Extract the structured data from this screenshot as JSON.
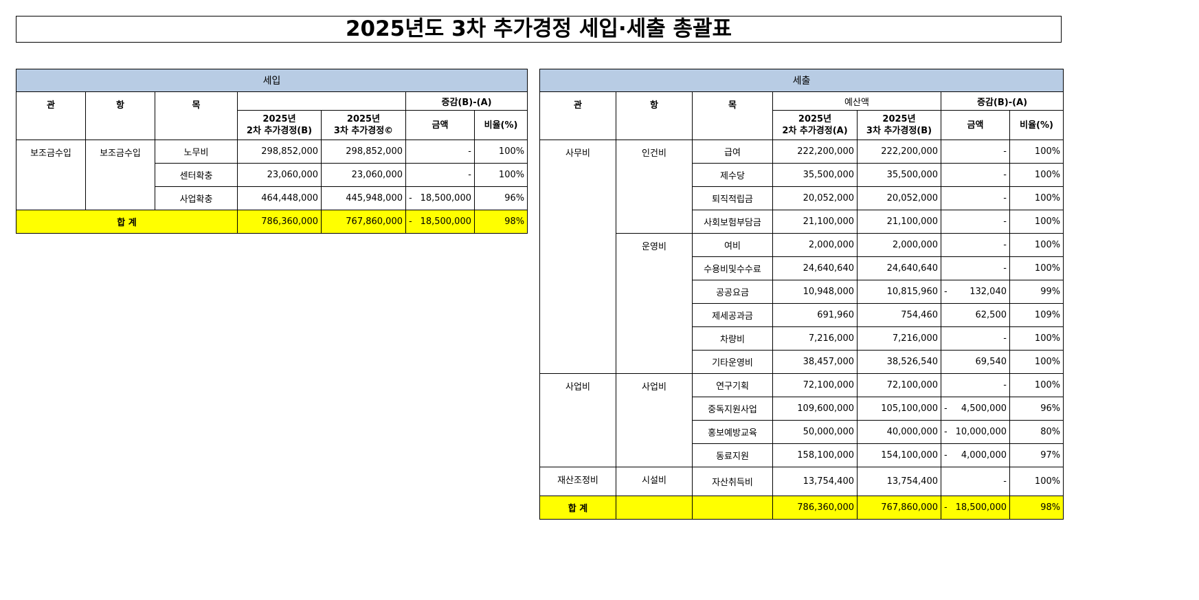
{
  "title": "2025년도 3차 추가경정 세입·세출 총괄표",
  "revenue": {
    "header": "세입",
    "col_gwan": "관",
    "col_hang": "항",
    "col_mok": "목",
    "col_budget_group": "",
    "col_b_year": "2025년",
    "col_b_label": "2차 추가경정(B)",
    "col_c_year": "2025년",
    "col_c_label": "3차 추가경정©",
    "col_diff_group": "증감(B)-(A)",
    "col_amount": "금액",
    "col_ratio": "비율(%)",
    "groups": [
      {
        "gwan": "보조금수입",
        "hangs": [
          {
            "hang": "보조금수입",
            "rows": [
              {
                "mok": "노무비",
                "prev": "298,852,000",
                "curr": "298,852,000",
                "diff_sign": "",
                "diff": "-",
                "ratio": "100%"
              },
              {
                "mok": "센터확충",
                "prev": "23,060,000",
                "curr": "23,060,000",
                "diff_sign": "",
                "diff": "-",
                "ratio": "100%"
              },
              {
                "mok": "사업확충",
                "prev": "464,448,000",
                "curr": "445,948,000",
                "diff_sign": "-",
                "diff": "18,500,000",
                "ratio": "96%"
              }
            ]
          }
        ]
      }
    ],
    "total": {
      "label": "합  계",
      "prev": "786,360,000",
      "curr": "767,860,000",
      "diff_sign": "-",
      "diff": "18,500,000",
      "ratio": "98%"
    }
  },
  "expenditure": {
    "header": "세출",
    "col_gwan": "관",
    "col_hang": "항",
    "col_mok": "목",
    "col_budget_group": "예산액",
    "col_b_year": "2025년",
    "col_b_label": "2차 추가경정(A)",
    "col_c_year": "2025년",
    "col_c_label": "3차 추가경정(B)",
    "col_diff_group": "증감(B)-(A)",
    "col_amount": "금액",
    "col_ratio": "비율(%)",
    "groups": [
      {
        "gwan": "사무비",
        "hangs": [
          {
            "hang": "인건비",
            "rows": [
              {
                "mok": "급여",
                "prev": "222,200,000",
                "curr": "222,200,000",
                "diff_sign": "",
                "diff": "-",
                "ratio": "100%"
              },
              {
                "mok": "제수당",
                "prev": "35,500,000",
                "curr": "35,500,000",
                "diff_sign": "",
                "diff": "-",
                "ratio": "100%"
              },
              {
                "mok": "퇴직적립금",
                "prev": "20,052,000",
                "curr": "20,052,000",
                "diff_sign": "",
                "diff": "-",
                "ratio": "100%"
              },
              {
                "mok": "사회보험부담금",
                "prev": "21,100,000",
                "curr": "21,100,000",
                "diff_sign": "",
                "diff": "-",
                "ratio": "100%"
              }
            ]
          },
          {
            "hang": "운영비",
            "rows": [
              {
                "mok": "여비",
                "prev": "2,000,000",
                "curr": "2,000,000",
                "diff_sign": "",
                "diff": "-",
                "ratio": "100%"
              },
              {
                "mok": "수용비및수수료",
                "prev": "24,640,640",
                "curr": "24,640,640",
                "diff_sign": "",
                "diff": "-",
                "ratio": "100%"
              },
              {
                "mok": "공공요금",
                "prev": "10,948,000",
                "curr": "10,815,960",
                "diff_sign": "-",
                "diff": "132,040",
                "ratio": "99%"
              },
              {
                "mok": "제세공과금",
                "prev": "691,960",
                "curr": "754,460",
                "diff_sign": "",
                "diff": "62,500",
                "ratio": "109%"
              },
              {
                "mok": "차량비",
                "prev": "7,216,000",
                "curr": "7,216,000",
                "diff_sign": "",
                "diff": "-",
                "ratio": "100%"
              },
              {
                "mok": "기타운영비",
                "prev": "38,457,000",
                "curr": "38,526,540",
                "diff_sign": "",
                "diff": "69,540",
                "ratio": "100%"
              }
            ]
          }
        ]
      },
      {
        "gwan": "사업비",
        "hangs": [
          {
            "hang": "사업비",
            "rows": [
              {
                "mok": "연구기획",
                "prev": "72,100,000",
                "curr": "72,100,000",
                "diff_sign": "",
                "diff": "-",
                "ratio": "100%"
              },
              {
                "mok": "중독지원사업",
                "prev": "109,600,000",
                "curr": "105,100,000",
                "diff_sign": "-",
                "diff": "4,500,000",
                "ratio": "96%"
              },
              {
                "mok": "홍보예방교육",
                "prev": "50,000,000",
                "curr": "40,000,000",
                "diff_sign": "-",
                "diff": "10,000,000",
                "ratio": "80%"
              },
              {
                "mok": "동료지원",
                "prev": "158,100,000",
                "curr": "154,100,000",
                "diff_sign": "-",
                "diff": "4,000,000",
                "ratio": "97%"
              }
            ]
          }
        ]
      },
      {
        "gwan": "재산조정비",
        "hangs": [
          {
            "hang": "시설비",
            "rows": [
              {
                "mok": "자산취득비",
                "prev": "13,754,400",
                "curr": "13,754,400",
                "diff_sign": "",
                "diff": "-",
                "ratio": "100%"
              }
            ]
          }
        ]
      }
    ],
    "total": {
      "label": "합  계",
      "prev": "786,360,000",
      "curr": "767,860,000",
      "diff_sign": "-",
      "diff": "18,500,000",
      "ratio": "98%"
    }
  },
  "colors": {
    "header_bg": "#b8cce4",
    "total_bg": "#ffff00"
  }
}
